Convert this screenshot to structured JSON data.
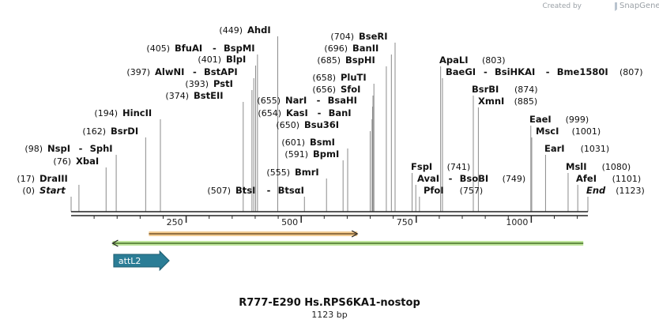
{
  "credit": {
    "created_by": "Created by",
    "brand": "SnapGene"
  },
  "title": "R777-E290 Hs.RPS6KA1-nostop",
  "length_label": "1123 bp",
  "sequence_length": 1123,
  "axis_ticks": [
    {
      "value": 250,
      "label": "250"
    },
    {
      "value": 500,
      "label": "500"
    },
    {
      "value": 750,
      "label": "750"
    },
    {
      "value": 1000,
      "label": "1000"
    }
  ],
  "features": [
    {
      "name": "attL2",
      "start": 96,
      "end": 196,
      "direction": "forward",
      "color": "#2b7d96"
    }
  ],
  "arrows": [
    {
      "name": "orange-orf",
      "start": 169,
      "end": 622,
      "direction": "forward",
      "color": "#e9a33b"
    },
    {
      "name": "green-orf",
      "start": 90,
      "end": 1113,
      "direction": "reverse",
      "color": "#8bd24a"
    }
  ],
  "labels": [
    {
      "pos": "(17)",
      "name": "DraIII",
      "site": 17
    },
    {
      "pos": "(0)",
      "name": "Start",
      "site": 0,
      "italic": true
    },
    {
      "pos": "(98)",
      "name": "NspI",
      "name2": "SphI",
      "site": 98
    },
    {
      "pos": "(76)",
      "name": "XbaI",
      "site": 76
    },
    {
      "pos": "(162)",
      "name": "BsrDI",
      "site": 162
    },
    {
      "pos": "(194)",
      "name": "HincII",
      "site": 194
    },
    {
      "pos": "(374)",
      "name": "BstEII",
      "site": 374
    },
    {
      "pos": "(393)",
      "name": "PstI",
      "site": 393
    },
    {
      "pos": "(397)",
      "name": "AlwNI",
      "name2": "BstAPI",
      "site": 397
    },
    {
      "pos": "(401)",
      "name": "BlpI",
      "site": 401
    },
    {
      "pos": "(405)",
      "name": "BfuAI",
      "name2": "BspMI",
      "site": 405
    },
    {
      "pos": "(449)",
      "name": "AhdI",
      "site": 449
    },
    {
      "pos": "(507)",
      "name": "BtsI",
      "name2": "BtsαI",
      "site": 507
    },
    {
      "pos": "(555)",
      "name": "BmrI",
      "site": 555
    },
    {
      "pos": "(591)",
      "name": "BpmI",
      "site": 591
    },
    {
      "pos": "(601)",
      "name": "BsmI",
      "site": 601
    },
    {
      "pos": "(650)",
      "name": "Bsu36I",
      "site": 650
    },
    {
      "pos": "(654)",
      "name": "KasI",
      "name2": "BanI",
      "site": 654
    },
    {
      "pos": "(655)",
      "name": "NarI",
      "name2": "BsaHI",
      "site": 655
    },
    {
      "pos": "(656)",
      "name": "SfoI",
      "site": 656
    },
    {
      "pos": "(658)",
      "name": "PluTI",
      "site": 658
    },
    {
      "pos": "(685)",
      "name": "BspHI",
      "site": 685
    },
    {
      "pos": "(696)",
      "name": "BanII",
      "site": 696
    },
    {
      "pos": "(704)",
      "name": "BseRI",
      "site": 704
    },
    {
      "pos": "(741)",
      "name": "FspI",
      "site": 741,
      "pos_after": true
    },
    {
      "pos": "(749)",
      "name": "AvaI",
      "name2": "BsoBI",
      "site": 749,
      "pos_after": true
    },
    {
      "pos": "(757)",
      "name": "PfoI",
      "site": 757,
      "pos_after": true
    },
    {
      "pos": "(803)",
      "name": "ApaLI",
      "site": 803,
      "pos_after": true
    },
    {
      "pos": "(807)",
      "name": "BaeGI",
      "name2": "BsiHKAI",
      "name3": "Bme1580I",
      "site": 807,
      "pos_after": true
    },
    {
      "pos": "(874)",
      "name": "BsrBI",
      "site": 874,
      "pos_after": true
    },
    {
      "pos": "(885)",
      "name": "XmnI",
      "site": 885,
      "pos_after": true
    },
    {
      "pos": "(999)",
      "name": "EaeI",
      "site": 999,
      "pos_after": true
    },
    {
      "pos": "(1001)",
      "name": "MscI",
      "site": 1001,
      "pos_after": true
    },
    {
      "pos": "(1031)",
      "name": "EarI",
      "site": 1031,
      "pos_after": true
    },
    {
      "pos": "(1080)",
      "name": "MslI",
      "site": 1080,
      "pos_after": true
    },
    {
      "pos": "(1101)",
      "name": "AfeI",
      "site": 1101,
      "pos_after": true
    },
    {
      "pos": "(1123)",
      "name": "End",
      "site": 1123,
      "pos_after": true,
      "italic": true
    }
  ]
}
